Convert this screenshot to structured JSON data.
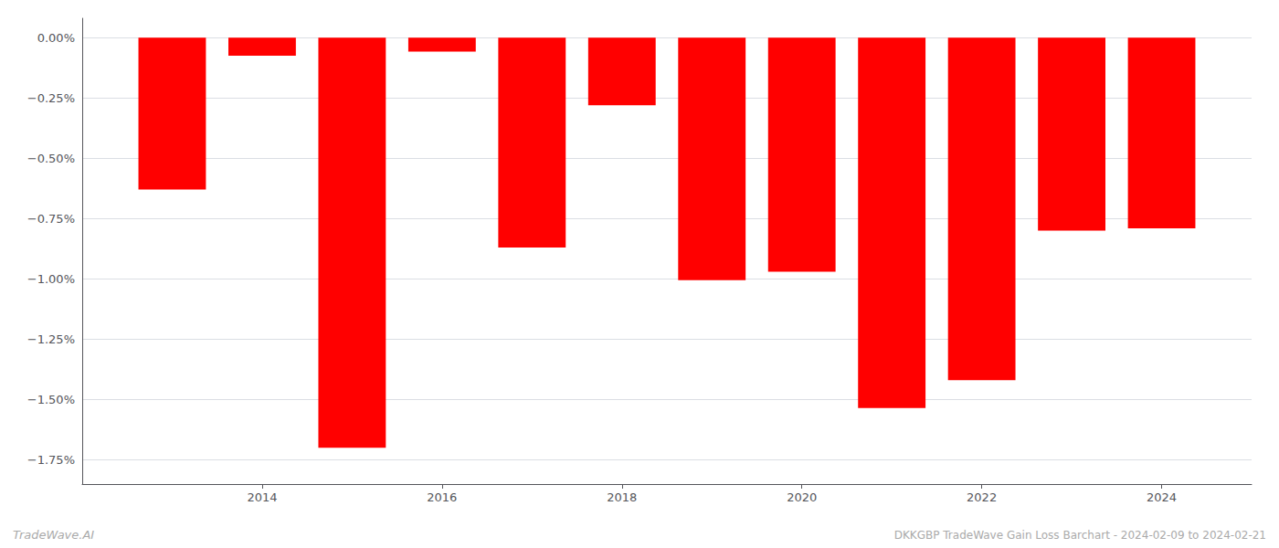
{
  "chart_data": {
    "type": "bar",
    "x": [
      2013,
      2014,
      2015,
      2016,
      2017,
      2018,
      2019,
      2020,
      2021,
      2022,
      2023,
      2024
    ],
    "values": [
      -0.63,
      -0.075,
      -1.7,
      -0.058,
      -0.87,
      -0.28,
      -1.005,
      -0.97,
      -1.535,
      -1.42,
      -0.8,
      -0.79
    ],
    "color": "#ff0000",
    "xlim": [
      2012.0,
      2025.0
    ],
    "xticks": [
      2014,
      2016,
      2018,
      2020,
      2022,
      2024
    ],
    "ylim": [
      -1.85,
      0.08
    ],
    "yticks": [
      {
        "value": 0.0,
        "label": "0.00%"
      },
      {
        "value": -0.25,
        "label": "−0.25%"
      },
      {
        "value": -0.5,
        "label": "−0.50%"
      },
      {
        "value": -0.75,
        "label": "−0.75%"
      },
      {
        "value": -1.0,
        "label": "−1.00%"
      },
      {
        "value": -1.25,
        "label": "−1.25%"
      },
      {
        "value": -1.5,
        "label": "−1.50%"
      },
      {
        "value": -1.75,
        "label": "−1.75%"
      }
    ],
    "grid": true,
    "annotations": [
      "TradeWave.AI",
      "DKKGBP TradeWave Gain Loss Barchart - 2024-02-09 to 2024-02-21"
    ]
  }
}
